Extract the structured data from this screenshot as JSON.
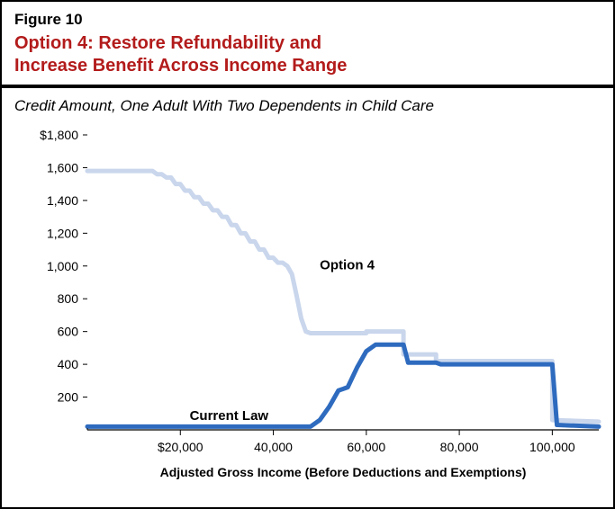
{
  "figure_number": "Figure 10",
  "figure_title_line1": "Option 4: Restore Refundability and",
  "figure_title_line2": "Increase Benefit Across Income Range",
  "subtitle": "Credit Amount, One Adult With Two Dependents in Child Care",
  "x_axis_title": "Adjusted Gross Income (Before Deductions and Exemptions)",
  "chart": {
    "type": "line",
    "background_color": "#ffffff",
    "border_color": "#000000",
    "title_color": "#b31b1b",
    "title_fontsize": 20,
    "subtitle_fontsize": 17,
    "axis_label_fontsize": 14,
    "series_label_fontsize": 15,
    "xlim": [
      0,
      110000
    ],
    "ylim": [
      0,
      1800
    ],
    "y_ticks": [
      0,
      200,
      400,
      600,
      800,
      1000,
      1200,
      1400,
      1600,
      1800
    ],
    "y_tick_labels": [
      "",
      "200",
      "400",
      "600",
      "800",
      "1,000",
      "1,200",
      "1,400",
      "1,600",
      "$1,800"
    ],
    "x_ticks": [
      20000,
      40000,
      60000,
      80000,
      100000
    ],
    "x_tick_labels": [
      "$20,000",
      "40,000",
      "60,000",
      "80,000",
      "100,000"
    ],
    "series": {
      "option4": {
        "label": "Option 4",
        "color": "#c9d6ec",
        "line_width": 5,
        "label_pos": {
          "x": 50000,
          "y": 980
        },
        "points": [
          [
            0,
            1580
          ],
          [
            14000,
            1580
          ],
          [
            15000,
            1560
          ],
          [
            16000,
            1560
          ],
          [
            17000,
            1540
          ],
          [
            18000,
            1540
          ],
          [
            19000,
            1500
          ],
          [
            20000,
            1500
          ],
          [
            21000,
            1460
          ],
          [
            22000,
            1460
          ],
          [
            23000,
            1420
          ],
          [
            24000,
            1420
          ],
          [
            25000,
            1380
          ],
          [
            26000,
            1380
          ],
          [
            27000,
            1340
          ],
          [
            28000,
            1340
          ],
          [
            29000,
            1300
          ],
          [
            30000,
            1300
          ],
          [
            31000,
            1250
          ],
          [
            32000,
            1250
          ],
          [
            33000,
            1200
          ],
          [
            34000,
            1200
          ],
          [
            35000,
            1150
          ],
          [
            36000,
            1150
          ],
          [
            37000,
            1100
          ],
          [
            38000,
            1100
          ],
          [
            39000,
            1050
          ],
          [
            40000,
            1050
          ],
          [
            41000,
            1020
          ],
          [
            42000,
            1020
          ],
          [
            43000,
            1000
          ],
          [
            44000,
            950
          ],
          [
            45000,
            820
          ],
          [
            46000,
            680
          ],
          [
            47000,
            600
          ],
          [
            48000,
            590
          ],
          [
            60000,
            590
          ],
          [
            60000,
            600
          ],
          [
            68000,
            600
          ],
          [
            68000,
            460
          ],
          [
            75000,
            460
          ],
          [
            75000,
            420
          ],
          [
            100000,
            420
          ],
          [
            100000,
            60
          ],
          [
            110000,
            50
          ]
        ]
      },
      "current_law": {
        "label": "Current Law",
        "color": "#2e6bbf",
        "line_width": 5,
        "label_pos": {
          "x": 22000,
          "y": 60
        },
        "points": [
          [
            0,
            20
          ],
          [
            48000,
            20
          ],
          [
            50000,
            60
          ],
          [
            52000,
            140
          ],
          [
            54000,
            240
          ],
          [
            56000,
            260
          ],
          [
            58000,
            380
          ],
          [
            60000,
            480
          ],
          [
            62000,
            520
          ],
          [
            68000,
            520
          ],
          [
            69000,
            410
          ],
          [
            75000,
            410
          ],
          [
            76000,
            400
          ],
          [
            100000,
            400
          ],
          [
            101000,
            30
          ],
          [
            110000,
            20
          ]
        ]
      }
    }
  }
}
